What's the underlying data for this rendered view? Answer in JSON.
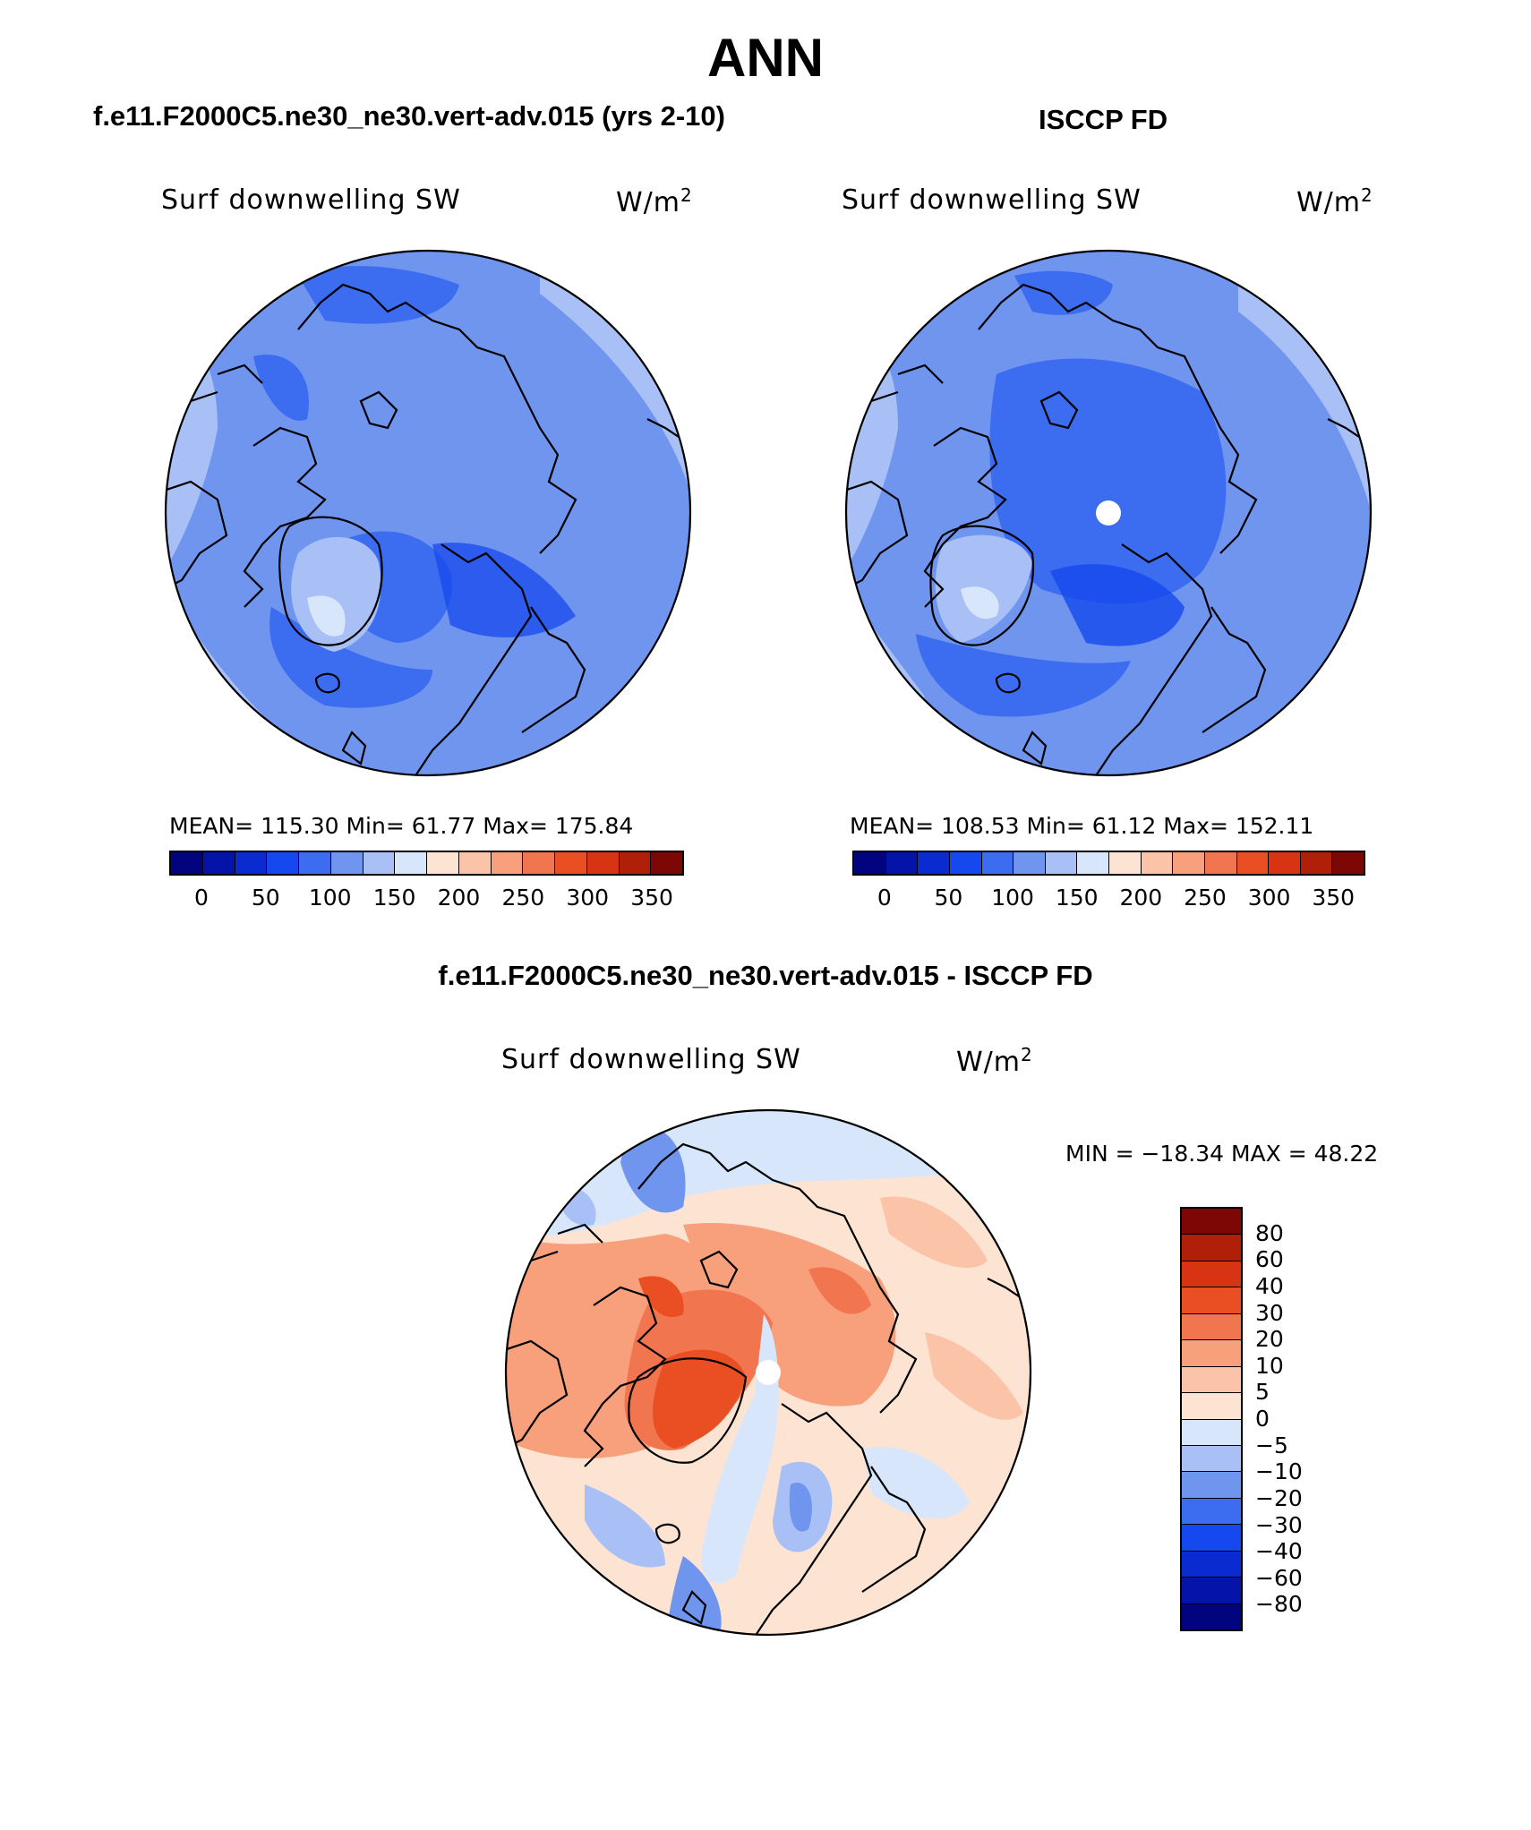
{
  "title": "ANN",
  "colors": {
    "abs_scale": [
      "#02037e",
      "#0413a8",
      "#0a2bd0",
      "#1548ee",
      "#3c6cf0",
      "#6f95ef",
      "#a8c0f6",
      "#d8e6fb",
      "#fde4d2",
      "#fbc3a8",
      "#f89f7c",
      "#f1754e",
      "#e94f22",
      "#d83312",
      "#b01f07",
      "#7d0705"
    ],
    "diff_scale": [
      "#02037e",
      "#0413a8",
      "#0a2bd0",
      "#1548ee",
      "#3c6cf0",
      "#6f95ef",
      "#a8c0f6",
      "#d8e6fb",
      "#fde4d2",
      "#fbc3a8",
      "#f89f7c",
      "#f1754e",
      "#e94f22",
      "#d83312",
      "#b01f07",
      "#7d0705"
    ]
  },
  "panels": {
    "model": {
      "heading": "f.e11.F2000C5.ne30_ne30.vert-adv.015 (yrs 2-10)",
      "variable": "Surf downwelling SW",
      "units_base": "W/m",
      "units_exp": "2",
      "stats": "MEAN= 115.30   Min=   61.77   Max= 175.84",
      "ticks": [
        "0",
        "50",
        "100",
        "150",
        "200",
        "250",
        "300",
        "350"
      ]
    },
    "obs": {
      "heading": "ISCCP FD",
      "variable": "Surf downwelling SW",
      "units_base": "W/m",
      "units_exp": "2",
      "stats": "MEAN= 108.53   Min=   61.12   Max= 152.11",
      "ticks": [
        "0",
        "50",
        "100",
        "150",
        "200",
        "250",
        "300",
        "350"
      ]
    },
    "diff": {
      "heading": "f.e11.F2000C5.ne30_ne30.vert-adv.015 - ISCCP FD",
      "variable": "Surf downwelling SW",
      "units_base": "W/m",
      "units_exp": "2",
      "stats": "MIN = −18.34 MAX =   48.22",
      "ticks": [
        "80",
        "60",
        "40",
        "30",
        "20",
        "10",
        "5",
        "0",
        "−5",
        "−10",
        "−20",
        "−30",
        "−40",
        "−60",
        "−80"
      ]
    }
  }
}
